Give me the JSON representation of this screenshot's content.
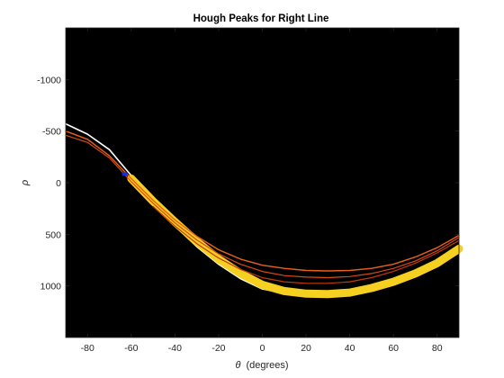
{
  "chart_data": {
    "type": "heatmap",
    "title": "Hough Peaks for Right Line",
    "xlabel_symbol": "θ",
    "xlabel_text": "(degrees)",
    "ylabel": "ρ",
    "xlim": [
      -90,
      90
    ],
    "ylim": [
      -1500,
      1500
    ],
    "y_reversed": true,
    "x_ticks": [
      -80,
      -60,
      -40,
      -20,
      0,
      20,
      40,
      60,
      80
    ],
    "y_ticks": [
      -1000,
      -500,
      0,
      500,
      1000
    ],
    "background_color": "#000000",
    "peak": {
      "theta": -63,
      "rho": -85,
      "marker_color": "#1a2bd8"
    },
    "bands": [
      {
        "label": "band-white",
        "color": "#ffffff",
        "width": 1.6,
        "points": [
          [
            -90,
            -570
          ],
          [
            -80,
            -470
          ],
          [
            -70,
            -320
          ],
          [
            -60,
            -70
          ],
          [
            -55,
            40
          ],
          [
            -50,
            200
          ],
          [
            -40,
            420
          ],
          [
            -30,
            620
          ],
          [
            -20,
            790
          ],
          [
            -10,
            930
          ],
          [
            0,
            1030
          ],
          [
            10,
            1070
          ],
          [
            20,
            1080
          ],
          [
            30,
            1080
          ],
          [
            40,
            1060
          ],
          [
            50,
            1020
          ],
          [
            60,
            960
          ],
          [
            70,
            880
          ],
          [
            80,
            780
          ],
          [
            90,
            640
          ]
        ]
      },
      {
        "label": "band-yellow",
        "color": "#f5d020",
        "width": 9,
        "points": [
          [
            -60,
            -40
          ],
          [
            -50,
            180
          ],
          [
            -40,
            380
          ],
          [
            -30,
            570
          ],
          [
            -20,
            740
          ],
          [
            -10,
            880
          ],
          [
            0,
            990
          ],
          [
            10,
            1050
          ],
          [
            20,
            1075
          ],
          [
            30,
            1080
          ],
          [
            40,
            1065
          ],
          [
            50,
            1020
          ],
          [
            60,
            960
          ],
          [
            70,
            880
          ],
          [
            80,
            780
          ],
          [
            90,
            640
          ]
        ]
      },
      {
        "label": "band-orange-1",
        "color": "#e8621a",
        "width": 1.4,
        "points": [
          [
            -90,
            -500
          ],
          [
            -80,
            -420
          ],
          [
            -70,
            -260
          ],
          [
            -60,
            -40
          ],
          [
            -50,
            170
          ],
          [
            -40,
            360
          ],
          [
            -30,
            520
          ],
          [
            -20,
            650
          ],
          [
            -10,
            740
          ],
          [
            0,
            800
          ],
          [
            10,
            830
          ],
          [
            20,
            850
          ],
          [
            30,
            855
          ],
          [
            40,
            850
          ],
          [
            50,
            830
          ],
          [
            60,
            790
          ],
          [
            70,
            720
          ],
          [
            80,
            630
          ],
          [
            90,
            510
          ]
        ]
      },
      {
        "label": "band-orange-2",
        "color": "#d84a10",
        "width": 1.2,
        "points": [
          [
            -90,
            -460
          ],
          [
            -80,
            -390
          ],
          [
            -70,
            -240
          ],
          [
            -60,
            -10
          ],
          [
            -50,
            200
          ],
          [
            -40,
            390
          ],
          [
            -30,
            555
          ],
          [
            -20,
            690
          ],
          [
            -10,
            790
          ],
          [
            0,
            860
          ],
          [
            10,
            900
          ],
          [
            20,
            915
          ],
          [
            30,
            920
          ],
          [
            40,
            910
          ],
          [
            50,
            880
          ],
          [
            60,
            830
          ],
          [
            70,
            760
          ],
          [
            80,
            660
          ],
          [
            90,
            530
          ]
        ]
      },
      {
        "label": "band-orange-3",
        "color": "#c4380a",
        "width": 1.2,
        "points": [
          [
            -50,
            230
          ],
          [
            -40,
            420
          ],
          [
            -30,
            590
          ],
          [
            -20,
            730
          ],
          [
            -10,
            840
          ],
          [
            0,
            920
          ],
          [
            10,
            960
          ],
          [
            20,
            975
          ],
          [
            30,
            975
          ],
          [
            40,
            960
          ],
          [
            50,
            920
          ],
          [
            60,
            860
          ],
          [
            70,
            780
          ],
          [
            80,
            680
          ],
          [
            90,
            560
          ]
        ]
      }
    ]
  }
}
